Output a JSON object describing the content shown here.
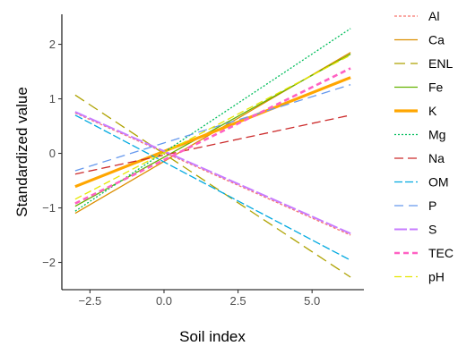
{
  "chart_data": {
    "type": "line",
    "title": "",
    "xlabel": "Soil index",
    "ylabel": "Standardized value",
    "xlim": [
      -3.45,
      6.75
    ],
    "ylim": [
      -2.5,
      2.55
    ],
    "xticks": [
      -2.5,
      0.0,
      2.5,
      5.0
    ],
    "xtick_labels": [
      "−2.5",
      "0.0",
      "2.5",
      "5.0"
    ],
    "yticks": [
      -2,
      -1,
      0,
      1,
      2
    ],
    "ytick_labels": [
      "−2",
      "−1",
      "0",
      "1",
      "2"
    ],
    "grid": false,
    "legend_position": "right",
    "series": [
      {
        "name": "Al",
        "x": [
          -3.0,
          6.3
        ],
        "y": [
          0.74,
          -1.5
        ],
        "color": "#F8766D",
        "dash": "3,2",
        "width": 1.3
      },
      {
        "name": "Ca",
        "x": [
          -3.0,
          6.3
        ],
        "y": [
          -1.1,
          1.85
        ],
        "color": "#DB8E00",
        "dash": "",
        "width": 1.3
      },
      {
        "name": "ENL",
        "x": [
          -3.0,
          6.3
        ],
        "y": [
          1.07,
          -2.27
        ],
        "color": "#AEA200",
        "dash": "12,6",
        "width": 1.3
      },
      {
        "name": "Fe",
        "x": [
          -3.0,
          6.3
        ],
        "y": [
          -0.97,
          1.82
        ],
        "color": "#64B200",
        "dash": "",
        "width": 1.3
      },
      {
        "name": "K",
        "x": [
          -3.0,
          6.3
        ],
        "y": [
          -0.61,
          1.39
        ],
        "color": "#FFA600",
        "dash": "",
        "width": 3.2
      },
      {
        "name": "Mg",
        "x": [
          -3.0,
          6.3
        ],
        "y": [
          -1.06,
          2.29
        ],
        "color": "#00BD5C",
        "dash": "2,2",
        "width": 1.3
      },
      {
        "name": "Na",
        "x": [
          -3.0,
          6.3
        ],
        "y": [
          -0.38,
          0.7
        ],
        "color": "#CC2A2A",
        "dash": "10,5",
        "width": 1.3
      },
      {
        "name": "OM",
        "x": [
          -3.0,
          6.3
        ],
        "y": [
          0.7,
          -1.96
        ],
        "color": "#00A9E0",
        "dash": "9,3",
        "width": 1.3
      },
      {
        "name": "P",
        "x": [
          -3.0,
          6.3
        ],
        "y": [
          -0.32,
          1.26
        ],
        "color": "#6699EE",
        "dash": "10,6",
        "width": 1.3
      },
      {
        "name": "S",
        "x": [
          -3.0,
          6.3
        ],
        "y": [
          0.76,
          -1.47
        ],
        "color": "#C77CFF",
        "dash": "14,3",
        "width": 2.0
      },
      {
        "name": "TEC",
        "x": [
          -3.0,
          6.3
        ],
        "y": [
          -0.92,
          1.56
        ],
        "color": "#FF61C3",
        "dash": "6,4",
        "width": 2.6
      },
      {
        "name": "pH",
        "x": [
          -3.0,
          6.3
        ],
        "y": [
          -0.84,
          1.8
        ],
        "color": "#E6E600",
        "dash": "8,4",
        "width": 1.3
      }
    ]
  }
}
